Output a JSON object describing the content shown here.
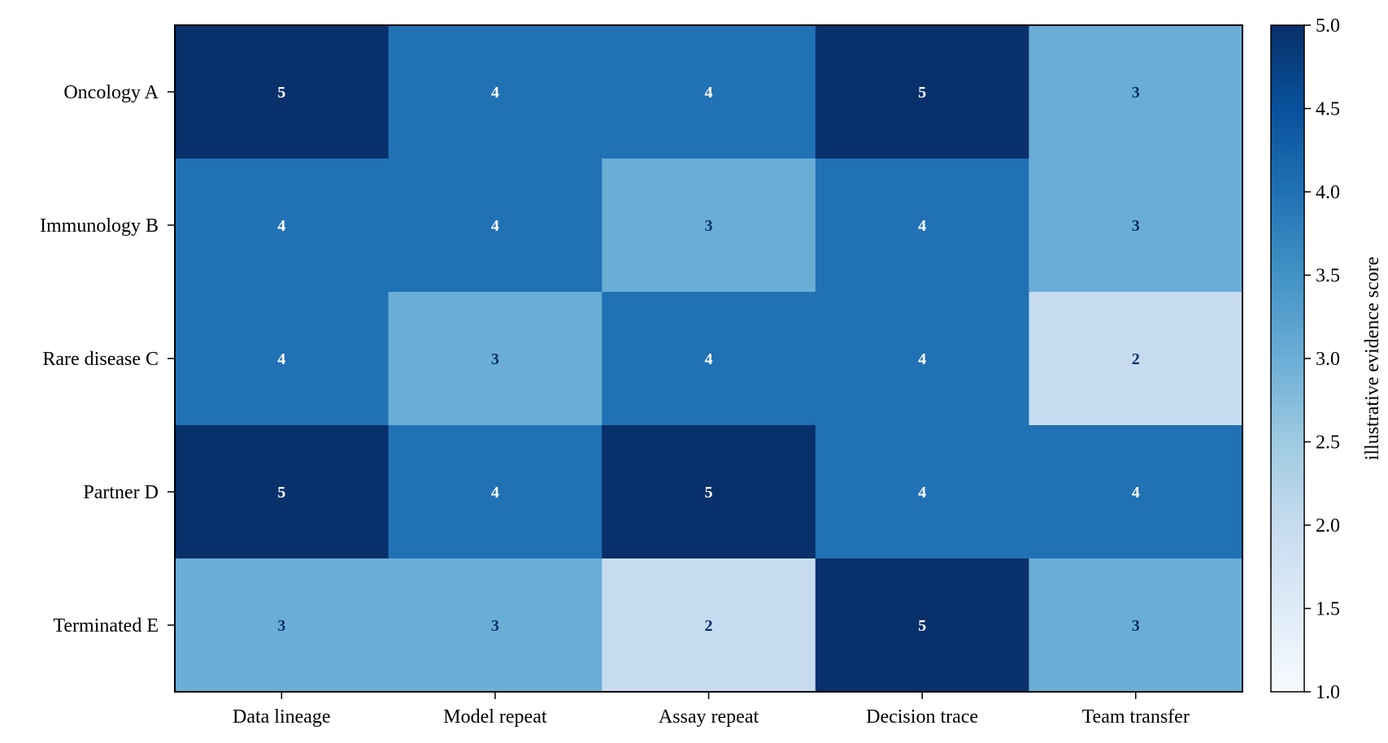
{
  "chart_data": {
    "type": "heatmap",
    "title": "",
    "xlabel": "",
    "ylabel": "",
    "rows": [
      "Oncology A",
      "Immunology B",
      "Rare disease C",
      "Partner D",
      "Terminated E"
    ],
    "columns": [
      "Data lineage",
      "Model repeat",
      "Assay repeat",
      "Decision trace",
      "Team transfer"
    ],
    "values": [
      [
        5,
        4,
        4,
        5,
        3
      ],
      [
        4,
        4,
        3,
        4,
        3
      ],
      [
        4,
        3,
        4,
        4,
        2
      ],
      [
        5,
        4,
        5,
        4,
        4
      ],
      [
        3,
        3,
        2,
        5,
        3
      ]
    ],
    "colorbar": {
      "label": "illustrative evidence score",
      "range": [
        1.0,
        5.0
      ],
      "ticks": [
        "1.0",
        "1.5",
        "2.0",
        "2.5",
        "3.0",
        "3.5",
        "4.0",
        "4.5",
        "5.0"
      ],
      "colormap": "Blues"
    },
    "colors": {
      "score_2": "#c6dbef",
      "score_3": "#6aaed6",
      "score_4": "#2171b5",
      "score_5": "#08306b",
      "label_dark": "#08306b",
      "label_light": "#ffffff"
    }
  }
}
